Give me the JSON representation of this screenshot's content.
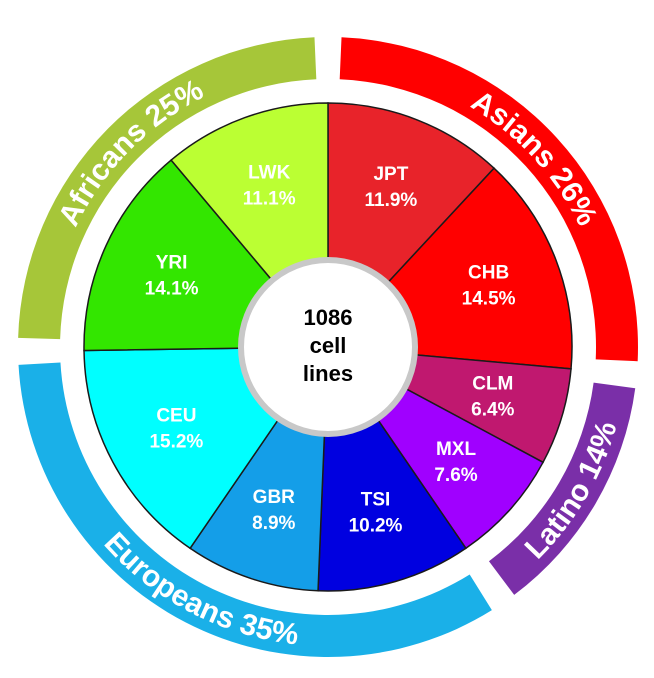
{
  "chart_data": {
    "type": "pie",
    "center_label": [
      "1086",
      "cell",
      "lines"
    ],
    "slices": [
      {
        "name": "JPT",
        "value": 11.9,
        "value_label": "11.9%",
        "color": "#e8232a"
      },
      {
        "name": "CHB",
        "value": 14.5,
        "value_label": "14.5%",
        "color": "#ff0000"
      },
      {
        "name": "CLM",
        "value": 6.4,
        "value_label": "6.4%",
        "color": "#c0186f"
      },
      {
        "name": "MXL",
        "value": 7.6,
        "value_label": "7.6%",
        "color": "#a000ff"
      },
      {
        "name": "TSI",
        "value": 10.2,
        "value_label": "10.2%",
        "color": "#0000e0"
      },
      {
        "name": "GBR",
        "value": 8.9,
        "value_label": "8.9%",
        "color": "#149ee8"
      },
      {
        "name": "CEU",
        "value": 15.2,
        "value_label": "15.2%",
        "color": "#00ffff"
      },
      {
        "name": "YRI",
        "value": 14.1,
        "value_label": "14.1%",
        "color": "#33e600"
      },
      {
        "name": "LWK",
        "value": 11.1,
        "value_label": "11.1%",
        "color": "#bbff33"
      }
    ],
    "groups": [
      {
        "name": "Asians",
        "label": "Asians 26%",
        "value": 26,
        "members": [
          "JPT",
          "CHB"
        ],
        "color": "#ff0000"
      },
      {
        "name": "Latino",
        "label": "Latino 14%",
        "value": 14,
        "members": [
          "CLM",
          "MXL"
        ],
        "color": "#7a2fa8"
      },
      {
        "name": "Europeans",
        "label": "Europeans 35%",
        "value": 35,
        "members": [
          "TSI",
          "GBR",
          "CEU"
        ],
        "color": "#1ab0e8"
      },
      {
        "name": "Africans",
        "label": "Africans 25%",
        "value": 25,
        "members": [
          "YRI",
          "LWK"
        ],
        "color": "#a6c639"
      }
    ]
  }
}
